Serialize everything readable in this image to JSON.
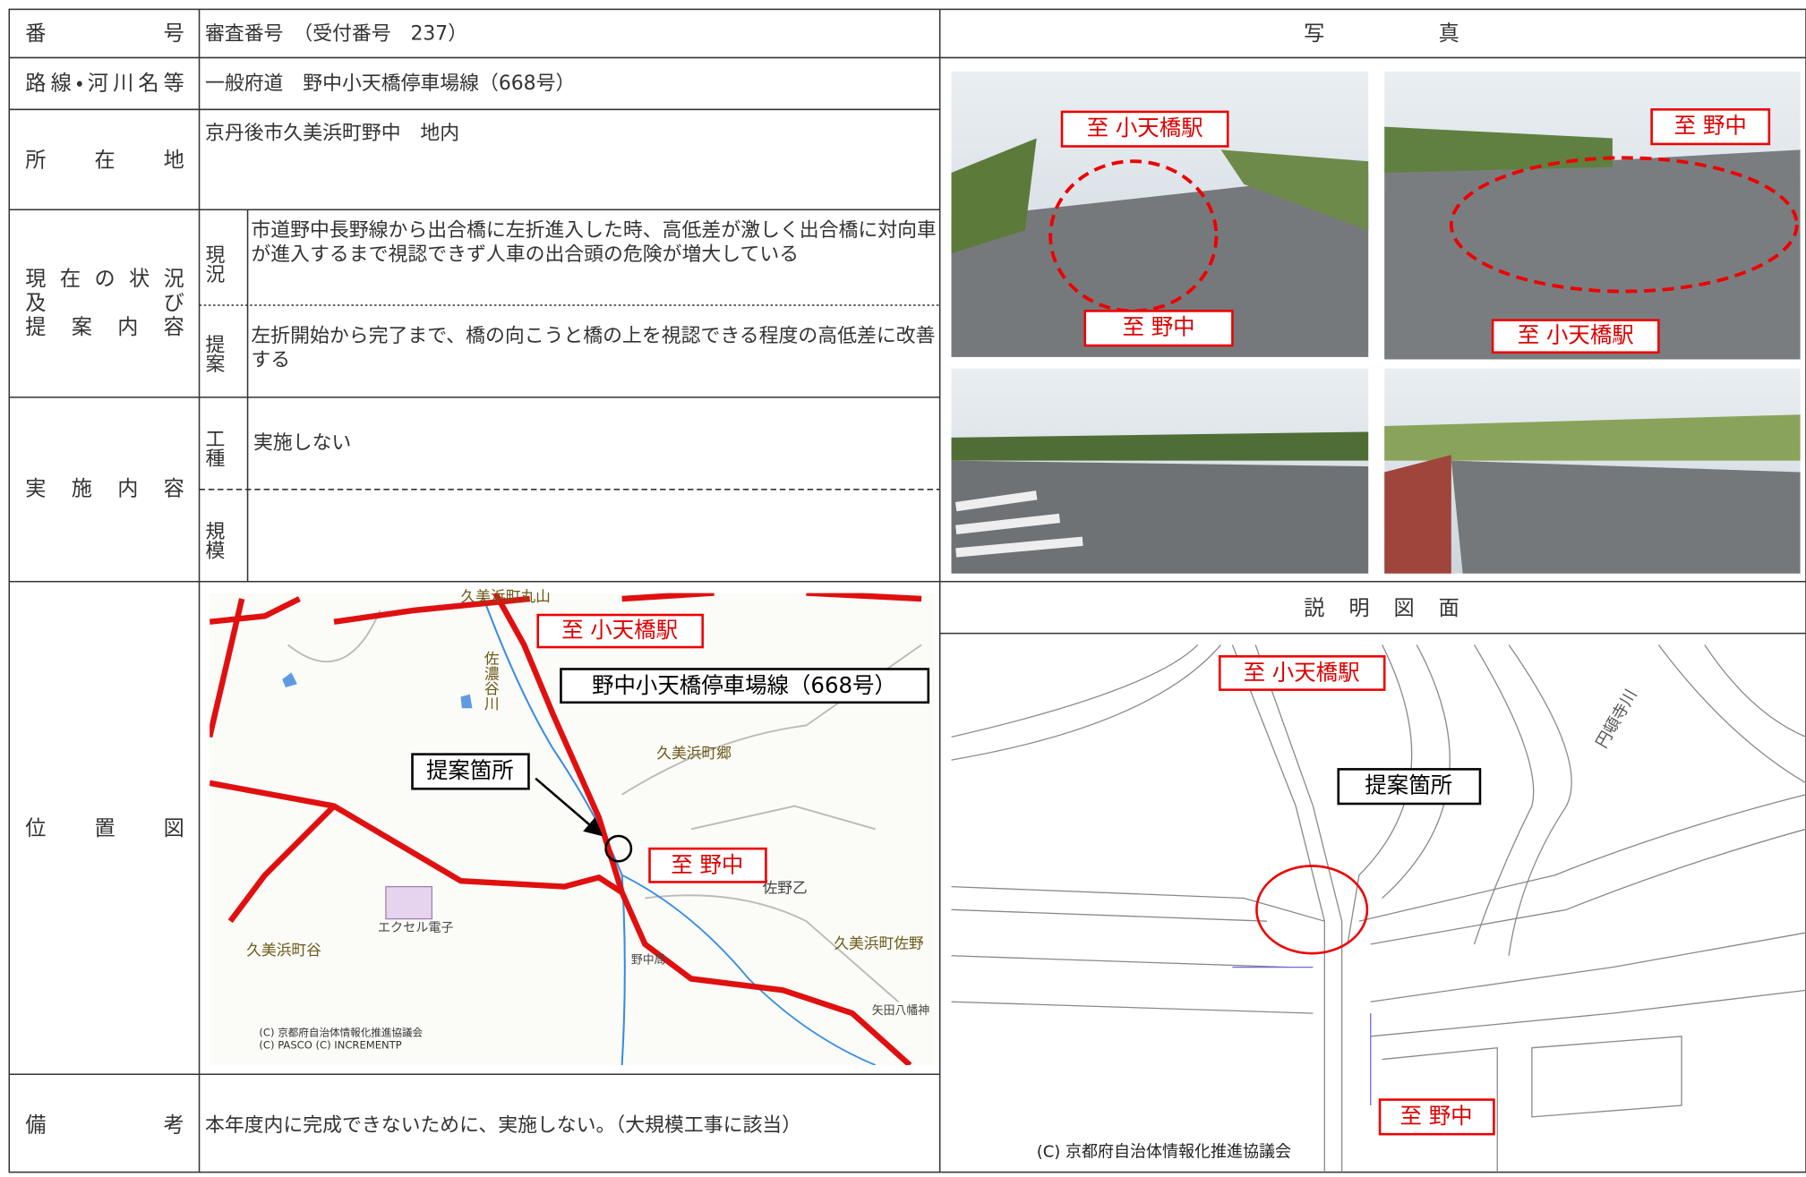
{
  "form": {
    "number": {
      "label": "番号",
      "value": "審査番号　（受付番号　237）"
    },
    "route": {
      "label": "路線・河川名等",
      "value": "一般府道　野中小天橋停車場線（668号）"
    },
    "location": {
      "label": "所在地",
      "value": "京丹後市久美浜町野中　地内"
    },
    "status": {
      "label": [
        "現在の状況",
        "及び",
        "提案内容"
      ],
      "current_label": "現況",
      "current": "市道野中長野線から出合橋に左折進入した時、高低差が激しく出合橋に対向車が進入するまで視認できず人車の出合頭の危険が増大している",
      "proposal_label": "提案",
      "proposal": "左折開始から完了まで、橋の向こうと橋の上を視認できる程度の高低差に改善する"
    },
    "implementation": {
      "label": "実施内容",
      "work_type_label": "工種",
      "work_type": "実施しない",
      "scale_label": "規模"
    },
    "location_map": {
      "label": "位置図",
      "to_station": "至 小天橋駅",
      "route_name": "野中小天橋停車場線（668号）",
      "proposal_site": "提案箇所",
      "to_nonaka": "至 野中",
      "places": [
        "久美浜町丸山",
        "佐濃谷川",
        "久美浜町郷",
        "佐野乙",
        "エクセル電子",
        "久美浜町谷",
        "野中局",
        "久美浜町佐野",
        "矢田八幡神"
      ],
      "copyright": [
        "(C) 京都府自治体情報化推進協議会",
        "(C) PASCO (C) INCREMENTP"
      ]
    },
    "remarks": {
      "label": "備考",
      "value": "本年度内に完成できないために、実施しない。（大規模工事に該当）"
    }
  },
  "photos": {
    "title": "写真",
    "labels": [
      "至 小天橋駅",
      "至 野中",
      "至 野中",
      "至 小天橋駅"
    ]
  },
  "diagram": {
    "title": "説明図面",
    "to_station": "至 小天橋駅",
    "proposal_site": "提案箇所",
    "river": "円頓寺川",
    "to_nonaka": "至 野中",
    "copyright": "(C) 京都府自治体情報化推進協議会"
  }
}
